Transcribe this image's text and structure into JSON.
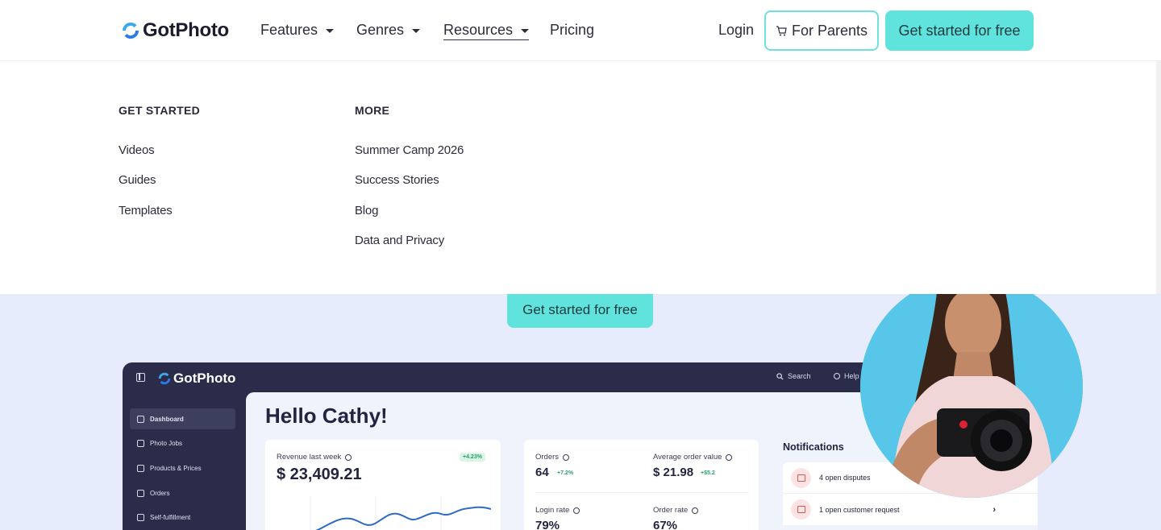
{
  "header": {
    "logo_text": "GotPhoto",
    "nav": [
      {
        "label": "Features"
      },
      {
        "label": "Genres"
      },
      {
        "label": "Resources"
      },
      {
        "label": "Pricing"
      }
    ],
    "login_label": "Login",
    "parents_label": "For Parents",
    "cta_label": "Get started for free"
  },
  "dropdown": {
    "col1_title": "GET STARTED",
    "col1_links": [
      "Videos",
      "Guides",
      "Templates"
    ],
    "col2_title": "MORE",
    "col2_links": [
      "Summer Camp 2026",
      "Success Stories",
      "Blog",
      "Data and Privacy"
    ]
  },
  "hero": {
    "cta_label": "Get started for free"
  },
  "app": {
    "logo_text": "GotPhoto",
    "search_label": "Search",
    "help_label": "Help",
    "sidebar": [
      {
        "label": "Dashboard",
        "active": true
      },
      {
        "label": "Photo Jobs"
      },
      {
        "label": "Products & Prices"
      },
      {
        "label": "Orders"
      },
      {
        "label": "Self-fulfillment"
      }
    ],
    "greeting": "Hello Cathy!",
    "revenue": {
      "label": "Revenue last week",
      "value": "$ 23,409.21",
      "change": "+4.23%"
    },
    "orders": {
      "label": "Orders",
      "value": "64",
      "change": "+7.2%"
    },
    "avg_order": {
      "label": "Average order value",
      "value": "$ 21.98",
      "change": "+$5.2"
    },
    "login_rate": {
      "label": "Login rate",
      "value": "79%"
    },
    "order_rate": {
      "label": "Order rate",
      "value": "67%"
    },
    "notifications": {
      "title": "Notifications",
      "items": [
        "4 open disputes",
        "1 open customer request"
      ]
    }
  },
  "colors": {
    "accent": "#5fe3dc",
    "app_dark": "#2a2c4a",
    "hero_bg": "#e6ecfb",
    "brand_blue": "#2c7be5"
  }
}
